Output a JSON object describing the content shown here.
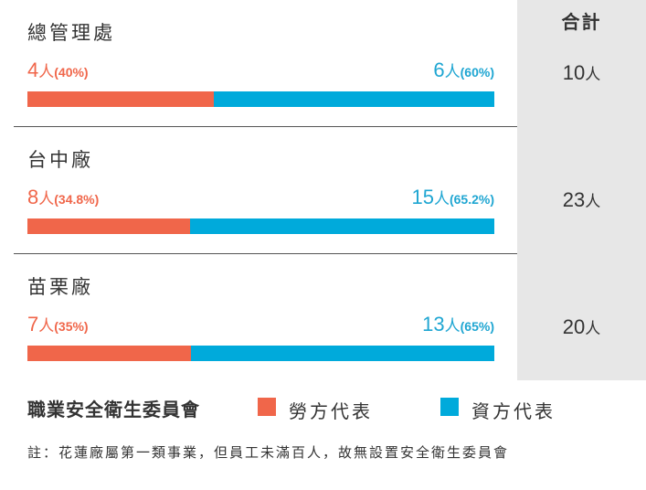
{
  "colors": {
    "labor": "#f0664a",
    "capital": "#00aadb",
    "total_bg": "#e7e7e7"
  },
  "total_header": "合計",
  "chart_data": {
    "type": "bar",
    "stacked": "horizontal-100-percent",
    "categories": [
      "總管理處",
      "台中廠",
      "苗栗廠"
    ],
    "series": [
      {
        "name": "勞方代表",
        "values": [
          4,
          8,
          7
        ],
        "percent_labels": [
          "(40%)",
          "(34.8%)",
          "(35%)"
        ]
      },
      {
        "name": "資方代表",
        "values": [
          6,
          15,
          13
        ],
        "percent_labels": [
          "(60%)",
          "(65.2%)",
          "(65%)"
        ]
      }
    ],
    "totals": [
      10,
      23,
      20
    ],
    "unit": "人"
  },
  "legend": {
    "title": "職業安全衛生委員會",
    "labor_label": "勞方代表",
    "capital_label": "資方代表"
  },
  "note": "註：花蓮廠屬第一類事業，但員工未滿百人，故無設置安全衛生委員會"
}
